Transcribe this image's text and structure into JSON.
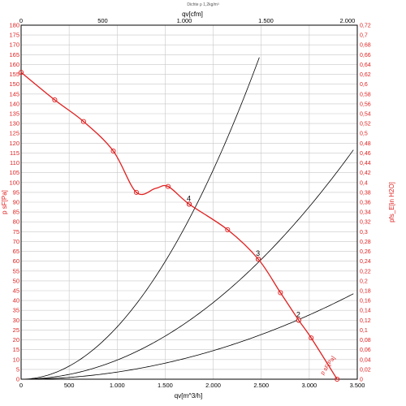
{
  "chart_data": {
    "type": "line",
    "title": "Dichte ρ 1,2kg/m³",
    "top_axis": {
      "label": "qv[cfm]",
      "ticks": [
        0,
        500,
        1000,
        1500,
        2000
      ],
      "tick_labels": [
        "0",
        "500",
        "1.000",
        "1.500",
        "2.000"
      ],
      "range": [
        0,
        2060
      ]
    },
    "xlabel": "qv[m^3/h]",
    "x_range": [
      0,
      3500
    ],
    "x_ticks": [
      0,
      500,
      1000,
      1500,
      2000,
      2500,
      3000,
      3500
    ],
    "x_tick_labels": [
      "0",
      "500",
      "1.000",
      "1.500",
      "2.000",
      "2.500",
      "3.000",
      "3.500"
    ],
    "ylabel": "p sF[Pa]",
    "y_range": [
      0,
      180
    ],
    "y_ticks": [
      0,
      5,
      10,
      15,
      20,
      25,
      30,
      35,
      40,
      45,
      50,
      55,
      60,
      65,
      70,
      75,
      80,
      85,
      90,
      95,
      100,
      105,
      110,
      115,
      120,
      125,
      130,
      135,
      140,
      145,
      150,
      155,
      160,
      165,
      170,
      175,
      180
    ],
    "y_tick_labels": [
      "0",
      "5",
      "10",
      "15",
      "20",
      "25",
      "30",
      "35",
      "40",
      "45",
      "50",
      "55",
      "60",
      "65",
      "70",
      "75",
      "80",
      "85",
      "90",
      "95",
      "100",
      "105",
      "110",
      "115",
      "120",
      "125",
      "130",
      "135",
      "140",
      "145",
      "150",
      "155",
      "160",
      "165",
      "170",
      "175",
      "180"
    ],
    "y2label": "pfs_E[in H2O]",
    "y2_range": [
      0,
      0.72
    ],
    "y2_tick_labels": [
      "0",
      "0,02",
      "0,04",
      "0,06",
      "0,08",
      "0,1",
      "0,12",
      "0,14",
      "0,16",
      "0,18",
      "0,2",
      "0,22",
      "0,24",
      "0,26",
      "0,28",
      "0,3",
      "0,32",
      "0,34",
      "0,36",
      "0,38",
      "0,4",
      "0,42",
      "0,44",
      "0,46",
      "0,48",
      "0,5",
      "0,52",
      "0,54",
      "0,56",
      "0,58",
      "0,6",
      "0,62",
      "0,64",
      "0,66",
      "0,68",
      "0,7",
      "0,72"
    ],
    "grid": true,
    "series": [
      {
        "name": "p sF[Pa]",
        "color": "#e02020",
        "x": [
          0,
          350,
          650,
          960,
          1200,
          1400,
          1530,
          1750,
          2150,
          2470,
          2700,
          2890,
          3020,
          3290
        ],
        "y": [
          156,
          142,
          131,
          116,
          95,
          97,
          98,
          89,
          76,
          61,
          44,
          30,
          21,
          0
        ],
        "markers": [
          {
            "x": 0,
            "y": 156
          },
          {
            "x": 350,
            "y": 142
          },
          {
            "x": 650,
            "y": 131
          },
          {
            "x": 960,
            "y": 116
          },
          {
            "x": 1200,
            "y": 95
          },
          {
            "x": 1530,
            "y": 98
          },
          {
            "x": 1750,
            "y": 89
          },
          {
            "x": 2150,
            "y": 76
          },
          {
            "x": 2470,
            "y": 61
          },
          {
            "x": 2700,
            "y": 44
          },
          {
            "x": 2890,
            "y": 30
          },
          {
            "x": 3020,
            "y": 21
          },
          {
            "x": 3290,
            "y": 0
          }
        ]
      }
    ],
    "system_curves": [
      {
        "k": 2.66e-05,
        "x_max": 2480,
        "label": "4",
        "label_x": 1750,
        "label_y": 89
      },
      {
        "k": 9.74e-06,
        "x_max": 3470,
        "label": "3",
        "label_x": 2470,
        "label_y": 61
      },
      {
        "k": 3.63e-06,
        "x_max": 3470,
        "label": "2",
        "label_x": 2890,
        "label_y": 30
      }
    ],
    "curve_label": "p sF[Pa]"
  }
}
